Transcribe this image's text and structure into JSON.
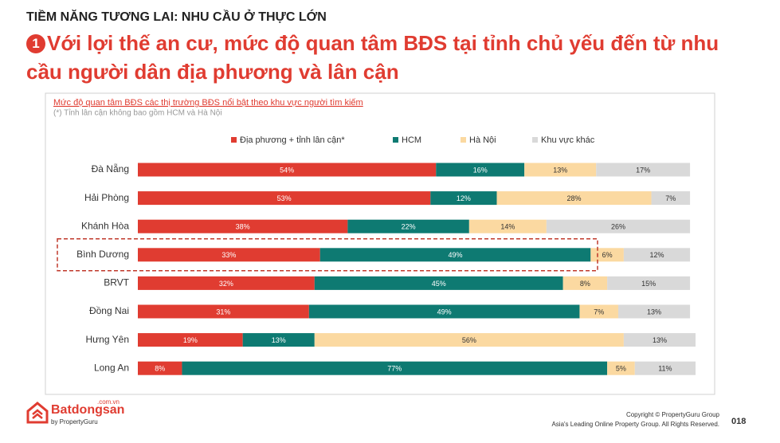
{
  "header": {
    "kicker": "TIỀM NĂNG TƯƠNG LAI: NHU CẦU Ở THỰC LỚN",
    "number": "1",
    "headline": [
      "Với lợi thế an cư, mức độ quan tâm BĐS tại tỉnh chủ yếu đến từ nhu",
      "cầu người dân địa phương và lân cận"
    ]
  },
  "chart_data": {
    "type": "stacked-barh",
    "title": "Mức độ quan tâm BĐS các thị trường BĐS nổi bật theo khu vực người tìm kiếm",
    "subtitle": "(*) Tỉnh lân cận không bao gồm HCM và Hà Nội",
    "categories": [
      "Đà Nẵng",
      "Hải Phòng",
      "Khánh Hòa",
      "Bình Dương",
      "BRVT",
      "Đồng Nai",
      "Hưng Yên",
      "Long An"
    ],
    "series": [
      {
        "name": "Địa phương + tỉnh lân cận*",
        "color": "#e03c31",
        "values": [
          54,
          53,
          38,
          33,
          32,
          31,
          19,
          8
        ],
        "value_labels": [
          "54%",
          "53%",
          "38%",
          "33%",
          "32%",
          "31%",
          "19%",
          "8%"
        ]
      },
      {
        "name": "HCM",
        "color": "#0e7a72",
        "values": [
          16,
          12,
          22,
          49,
          45,
          49,
          13,
          77
        ],
        "value_labels": [
          "16%",
          "12%",
          "22%",
          "49%",
          "45%",
          "49%",
          "13%",
          "77%"
        ]
      },
      {
        "name": "Hà Nội",
        "color": "#fbd9a1",
        "values": [
          13,
          28,
          14,
          6,
          8,
          7,
          56,
          5
        ],
        "value_labels": [
          "13%",
          "28%",
          "14%",
          "6%",
          "8%",
          "7%",
          "56%",
          "5%"
        ]
      },
      {
        "name": "Khu vực khác",
        "color": "#d9d9d9",
        "values": [
          17,
          7,
          26,
          12,
          15,
          13,
          13,
          11
        ],
        "value_labels": [
          "17%",
          "7%",
          "26%",
          "12%",
          "15%",
          "13%",
          "13%",
          "11%"
        ]
      }
    ]
  },
  "footer": {
    "brand": "Batdongsan",
    "domain": ".com.vn",
    "byline": "by PropertyGuru",
    "copyright": [
      "Copyright © PropertyGuru Group",
      "Asia's Leading Online Property Group. All Rights Reserved."
    ],
    "page": "018"
  }
}
